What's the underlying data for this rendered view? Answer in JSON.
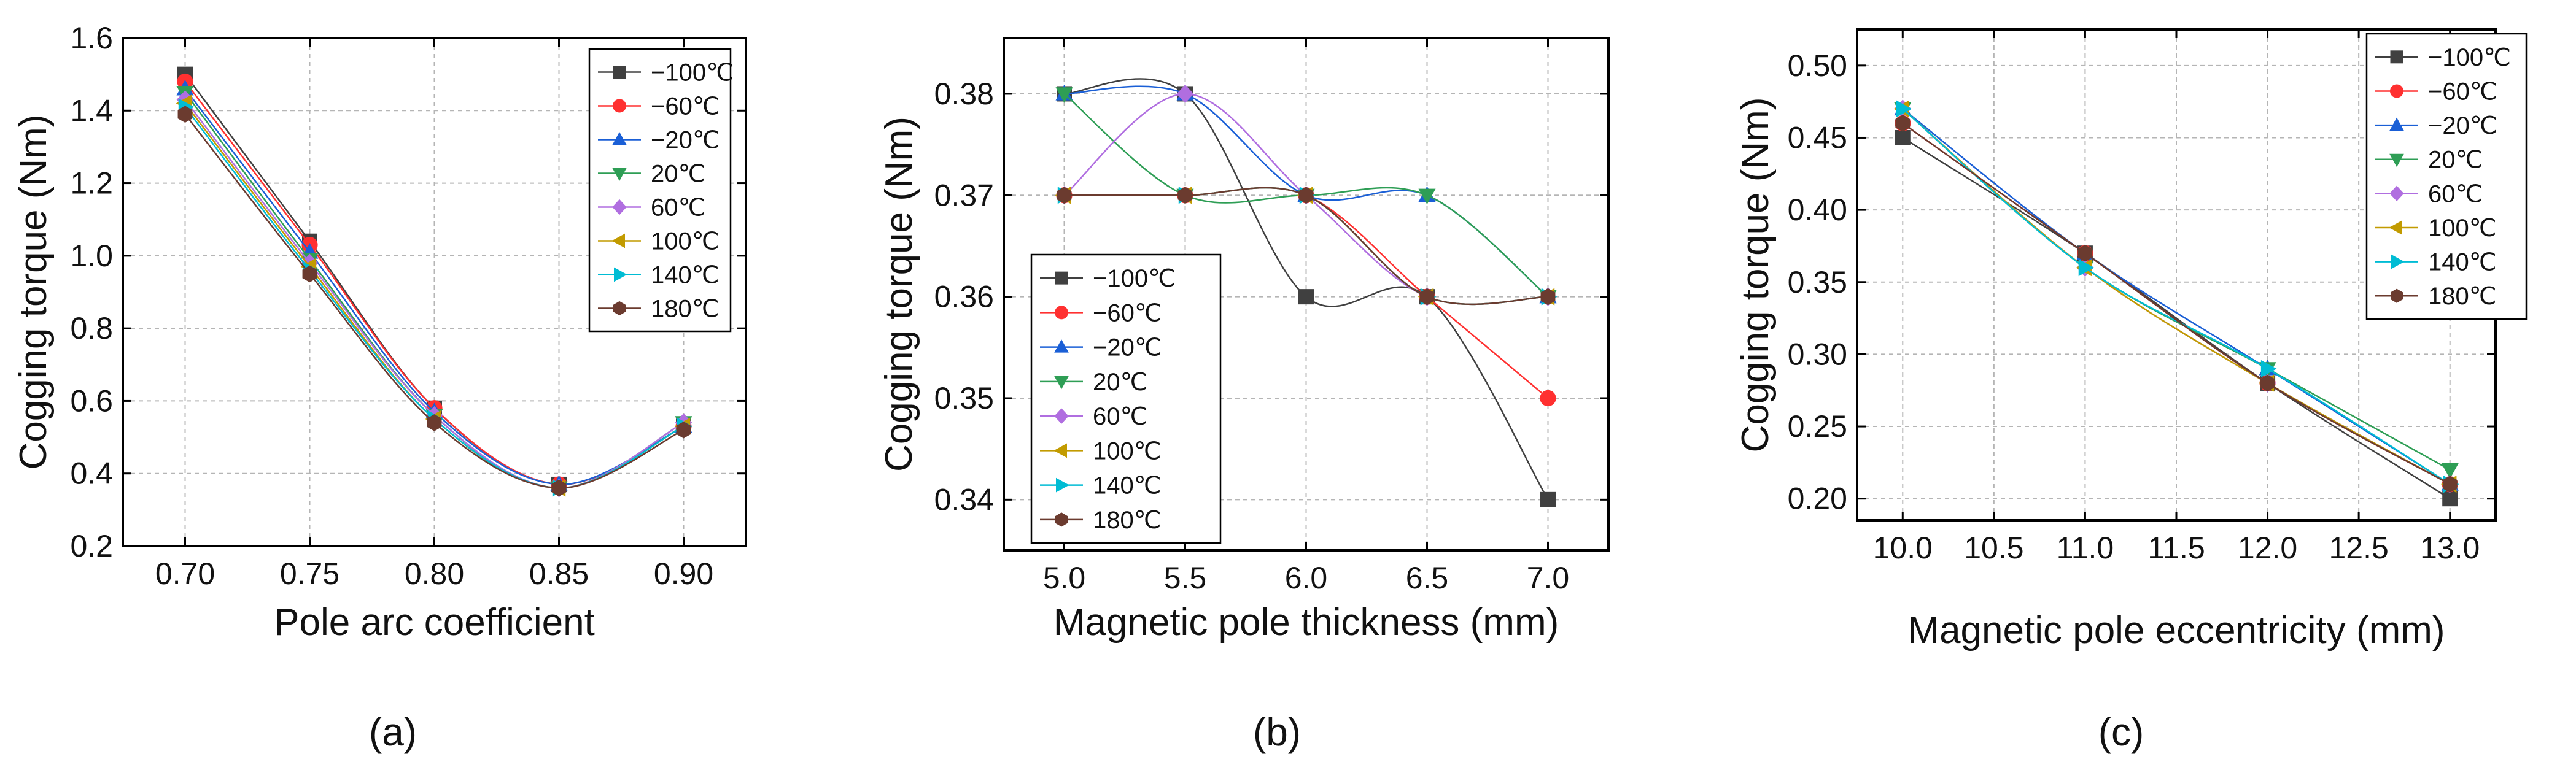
{
  "chart_data": [
    {
      "type": "line",
      "panel": "(a)",
      "xlabel": "Pole arc coefficient",
      "ylabel": "Cogging torque (Nm)",
      "x": [
        0.7,
        0.75,
        0.8,
        0.85,
        0.9
      ],
      "x_ticks": [
        "0.70",
        "0.75",
        "0.80",
        "0.85",
        "0.90"
      ],
      "y_ticks": [
        "0.2",
        "0.4",
        "0.6",
        "0.8",
        "1.0",
        "1.2",
        "1.4",
        "1.6"
      ],
      "xlim": [
        0.675,
        0.925
      ],
      "ylim": [
        0.2,
        1.6
      ],
      "legend_position": "top-right",
      "grid": true,
      "series": [
        {
          "name": "−100℃",
          "values": [
            1.5,
            1.04,
            0.58,
            0.37,
            0.53
          ]
        },
        {
          "name": "−60℃",
          "values": [
            1.48,
            1.03,
            0.58,
            0.37,
            0.53
          ]
        },
        {
          "name": "−20℃",
          "values": [
            1.46,
            1.01,
            0.57,
            0.37,
            0.53
          ]
        },
        {
          "name": "20℃",
          "values": [
            1.45,
            0.99,
            0.56,
            0.36,
            0.54
          ]
        },
        {
          "name": "60℃",
          "values": [
            1.43,
            0.98,
            0.56,
            0.36,
            0.54
          ]
        },
        {
          "name": "100℃",
          "values": [
            1.42,
            0.97,
            0.55,
            0.36,
            0.53
          ]
        },
        {
          "name": "140℃",
          "values": [
            1.41,
            0.96,
            0.55,
            0.36,
            0.53
          ]
        },
        {
          "name": "180℃",
          "values": [
            1.39,
            0.95,
            0.54,
            0.36,
            0.52
          ]
        }
      ]
    },
    {
      "type": "line",
      "panel": "(b)",
      "xlabel": "Magnetic pole thickness (mm)",
      "ylabel": "Cogging torque (Nm)",
      "x": [
        5.0,
        5.5,
        6.0,
        6.5,
        7.0
      ],
      "x_ticks": [
        "5.0",
        "5.5",
        "6.0",
        "6.5",
        "7.0"
      ],
      "y_ticks": [
        "0.34",
        "0.35",
        "0.36",
        "0.37",
        "0.38"
      ],
      "xlim": [
        4.75,
        7.25
      ],
      "ylim": [
        0.335,
        0.3855
      ],
      "legend_position": "bottom-left",
      "grid": true,
      "series": [
        {
          "name": "−100℃",
          "values": [
            0.38,
            0.38,
            0.36,
            0.36,
            0.34
          ]
        },
        {
          "name": "−60℃",
          "values": [
            0.37,
            0.37,
            0.37,
            0.36,
            0.35
          ]
        },
        {
          "name": "−20℃",
          "values": [
            0.38,
            0.38,
            0.37,
            0.37,
            0.36
          ]
        },
        {
          "name": "20℃",
          "values": [
            0.38,
            0.37,
            0.37,
            0.37,
            0.36
          ]
        },
        {
          "name": "60℃",
          "values": [
            0.37,
            0.38,
            0.37,
            0.36,
            0.36
          ]
        },
        {
          "name": "100℃",
          "values": [
            0.37,
            0.37,
            0.37,
            0.36,
            0.36
          ]
        },
        {
          "name": "140℃",
          "values": [
            0.37,
            0.37,
            0.37,
            0.36,
            0.36
          ]
        },
        {
          "name": "180℃",
          "values": [
            0.37,
            0.37,
            0.37,
            0.36,
            0.36
          ]
        }
      ]
    },
    {
      "type": "line",
      "panel": "(c)",
      "xlabel": "Magnetic pole eccentricity (mm)",
      "ylabel": "Cogging torque (Nm)",
      "x": [
        10.0,
        11.0,
        12.0,
        13.0
      ],
      "x_ticks": [
        "10.0",
        "10.5",
        "11.0",
        "11.5",
        "12.0",
        "12.5",
        "13.0"
      ],
      "y_ticks": [
        "0.20",
        "0.25",
        "0.30",
        "0.35",
        "0.40",
        "0.45",
        "0.50"
      ],
      "xlim": [
        9.75,
        13.25
      ],
      "ylim": [
        0.185,
        0.525
      ],
      "legend_position": "top-right",
      "grid": true,
      "series": [
        {
          "name": "−100℃",
          "values": [
            0.45,
            0.37,
            0.28,
            0.2
          ]
        },
        {
          "name": "−60℃",
          "values": [
            0.46,
            0.37,
            0.28,
            0.21
          ]
        },
        {
          "name": "−20℃",
          "values": [
            0.47,
            0.37,
            0.29,
            0.21
          ]
        },
        {
          "name": "20℃",
          "values": [
            0.47,
            0.36,
            0.29,
            0.22
          ]
        },
        {
          "name": "60℃",
          "values": [
            0.47,
            0.36,
            0.28,
            0.21
          ]
        },
        {
          "name": "100℃",
          "values": [
            0.47,
            0.36,
            0.28,
            0.21
          ]
        },
        {
          "name": "140℃",
          "values": [
            0.47,
            0.36,
            0.29,
            0.21
          ]
        },
        {
          "name": "180℃",
          "values": [
            0.46,
            0.37,
            0.28,
            0.21
          ]
        }
      ]
    }
  ],
  "series_style": [
    {
      "color": "#404040",
      "marker": "square"
    },
    {
      "color": "#ff3030",
      "marker": "circle"
    },
    {
      "color": "#1a5fd6",
      "marker": "triangle-up"
    },
    {
      "color": "#2e9e55",
      "marker": "triangle-down"
    },
    {
      "color": "#b06ee0",
      "marker": "diamond"
    },
    {
      "color": "#c29b00",
      "marker": "triangle-left"
    },
    {
      "color": "#00bcd4",
      "marker": "triangle-right"
    },
    {
      "color": "#6b3b2f",
      "marker": "hexagon"
    }
  ]
}
